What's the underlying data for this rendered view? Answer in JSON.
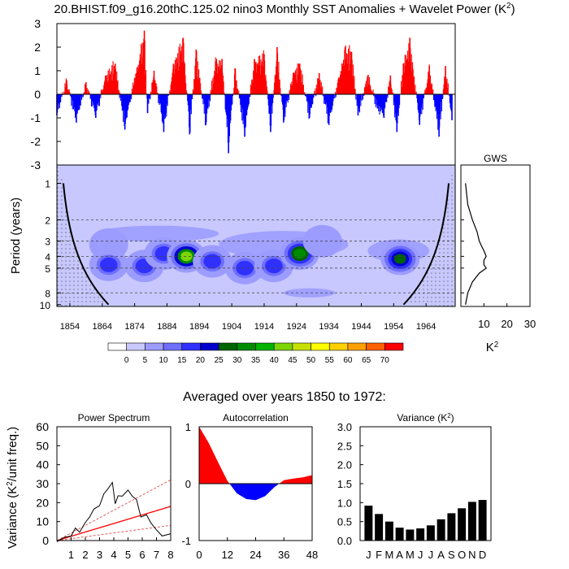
{
  "title": {
    "text": "20.BHIST.f09_g16.20thC.125.02 nino3 Monthly SST Anomalies + Wavelet Power (K",
    "sup": "2",
    "close": ")"
  },
  "subtitle_avg": "Averaged over years 1850 to 1972:",
  "colors": {
    "pos": "#ff0000",
    "neg": "#0000ff",
    "bar": "#000000",
    "sig": "#e06060"
  },
  "chart_data": [
    {
      "id": "anomaly",
      "type": "bar",
      "title": "",
      "xlim": [
        1850,
        1973
      ],
      "ylim": [
        -3,
        3
      ],
      "yticks": [
        "3",
        "2",
        "1",
        "0",
        "-1",
        "-2",
        "-3"
      ],
      "years": [
        1850,
        1853,
        1856,
        1859,
        1862,
        1865,
        1868,
        1871,
        1874,
        1877,
        1878,
        1880,
        1883,
        1886,
        1889,
        1891,
        1893,
        1896,
        1899,
        1901,
        1903,
        1905,
        1908,
        1911,
        1914,
        1916,
        1918,
        1920,
        1923,
        1925,
        1928,
        1931,
        1934,
        1937,
        1939,
        1941,
        1943,
        1946,
        1949,
        1951,
        1953,
        1955,
        1957,
        1959,
        1962,
        1965,
        1968,
        1970,
        1972
      ],
      "values": [
        -0.9,
        0.6,
        -1.2,
        0.5,
        -1.0,
        0.8,
        1.3,
        -1.5,
        0.7,
        2.7,
        -0.8,
        1.0,
        -1.6,
        1.3,
        2.4,
        -1.7,
        1.9,
        -1.3,
        1.4,
        1.5,
        -2.5,
        1.1,
        -1.8,
        1.5,
        1.7,
        -1.6,
        2.0,
        -1.2,
        0.9,
        1.3,
        -1.0,
        0.9,
        -1.3,
        0.7,
        2.0,
        1.8,
        -0.9,
        0.8,
        -0.6,
        -1.0,
        0.8,
        -1.6,
        1.3,
        2.4,
        -1.3,
        1.2,
        -1.8,
        1.2,
        -1.1
      ]
    },
    {
      "id": "wavelet",
      "type": "heatmap",
      "ylabel": "Period (years)",
      "yticks": [
        1,
        2,
        3,
        4,
        5,
        8,
        10
      ],
      "xticks": [
        1854,
        1864,
        1874,
        1884,
        1894,
        1904,
        1914,
        1924,
        1934,
        1944,
        1954,
        1964
      ],
      "xlim": [
        1850,
        1973
      ],
      "significant_periods": [
        2,
        3,
        4,
        5,
        8
      ],
      "labelbar": {
        "values": [
          0,
          5,
          10,
          15,
          20,
          25,
          30,
          35,
          40,
          45,
          50,
          55,
          60,
          65,
          70
        ]
      },
      "power_colors": [
        "#ffffff",
        "#c8c8ff",
        "#9c9cff",
        "#6f6fff",
        "#3030ff",
        "#0000cd",
        "#006400",
        "#008c00",
        "#00b400",
        "#7cd400",
        "#c8e000",
        "#ffff00",
        "#ffd000",
        "#ffa000",
        "#ff6000",
        "#ff0000"
      ],
      "blobs": [
        {
          "x": 1866,
          "p": 3.2,
          "level": 2
        },
        {
          "x": 1866,
          "p": 4.7,
          "level": 4
        },
        {
          "x": 1877,
          "p": 4.8,
          "level": 4
        },
        {
          "x": 1883,
          "p": 3.8,
          "level": 4
        },
        {
          "x": 1890,
          "p": 4.0,
          "level": 7
        },
        {
          "x": 1890,
          "p": 4.0,
          "level": 9
        },
        {
          "x": 1898,
          "p": 4.4,
          "level": 4
        },
        {
          "x": 1908,
          "p": 5.0,
          "level": 4
        },
        {
          "x": 1917,
          "p": 4.8,
          "level": 4
        },
        {
          "x": 1925,
          "p": 3.8,
          "level": 6
        },
        {
          "x": 1925,
          "p": 3.8,
          "level": 7
        },
        {
          "x": 1956,
          "p": 4.2,
          "level": 6
        },
        {
          "x": 1932,
          "p": 3.0,
          "level": 2
        }
      ]
    },
    {
      "id": "gws",
      "type": "line",
      "title": "GWS",
      "xlabel": "K",
      "xlabel_sup": "2",
      "xticks": [
        10,
        20,
        30
      ],
      "xlim": [
        0,
        30
      ],
      "period": [
        1,
        1.5,
        2,
        2.5,
        3,
        3.3,
        3.6,
        4,
        4.3,
        4.7,
        5,
        5.5,
        6.5,
        8,
        10
      ],
      "power": [
        2,
        3,
        5,
        7,
        8,
        9,
        10,
        11,
        10,
        10,
        11,
        8,
        5,
        3,
        2
      ]
    },
    {
      "id": "spectrum",
      "type": "line",
      "title": "Power Spectrum",
      "ylabel": "Variance (K",
      "ylabel_sup": "2",
      "ylabel_tail": "/unit freq.)",
      "xlim": [
        0,
        8
      ],
      "ylim": [
        0,
        60
      ],
      "xticks": [
        "1",
        "2",
        "3",
        "4",
        "5",
        "6",
        "7",
        "8"
      ],
      "yticks": [
        "0",
        "10",
        "20",
        "30",
        "40",
        "50",
        "60"
      ],
      "x": [
        0,
        0.5,
        1.0,
        1.3,
        1.6,
        2.0,
        2.3,
        2.6,
        3.0,
        3.3,
        3.6,
        3.9,
        4.1,
        4.3,
        4.6,
        5.0,
        5.3,
        5.6,
        5.9,
        6.3,
        6.6,
        7.0,
        7.4,
        8.0
      ],
      "y": [
        0,
        1,
        3,
        6,
        5,
        9,
        13,
        16,
        19,
        24,
        28,
        30,
        20,
        23,
        24,
        26,
        24,
        21,
        13,
        13,
        10,
        5,
        3,
        3
      ],
      "red_lines": [
        {
          "x": [
            0,
            8
          ],
          "y": [
            0,
            32
          ],
          "style": "dash"
        },
        {
          "x": [
            0,
            8
          ],
          "y": [
            0,
            18
          ],
          "style": "solid"
        },
        {
          "x": [
            0,
            8
          ],
          "y": [
            0,
            8
          ],
          "style": "dash"
        }
      ]
    },
    {
      "id": "autocorr",
      "type": "area",
      "title": "Autocorrelation",
      "xlim": [
        0,
        48
      ],
      "ylim": [
        -1,
        1
      ],
      "xticks": [
        "0",
        "12",
        "24",
        "36",
        "48"
      ],
      "yticks": [
        "1",
        "0",
        "-1"
      ],
      "lag": [
        0,
        4,
        8,
        12,
        16,
        20,
        24,
        28,
        32,
        36,
        40,
        44,
        48
      ],
      "r": [
        1.0,
        0.72,
        0.38,
        0.05,
        -0.17,
        -0.27,
        -0.29,
        -0.22,
        -0.06,
        0.06,
        0.09,
        0.11,
        0.15
      ]
    },
    {
      "id": "variance",
      "type": "bar",
      "title": "Variance (K",
      "title_sup": "2",
      "title_tail": ")",
      "ylim": [
        0,
        3.0
      ],
      "yticks": [
        "3.0",
        "2.5",
        "2.0",
        "1.5",
        "1.0",
        "0.5",
        "0.0"
      ],
      "categories": [
        "J",
        "F",
        "M",
        "A",
        "M",
        "J",
        "J",
        "A",
        "S",
        "O",
        "N",
        "D"
      ],
      "values": [
        0.92,
        0.7,
        0.5,
        0.34,
        0.29,
        0.32,
        0.4,
        0.56,
        0.72,
        0.85,
        1.02,
        1.07
      ]
    }
  ]
}
